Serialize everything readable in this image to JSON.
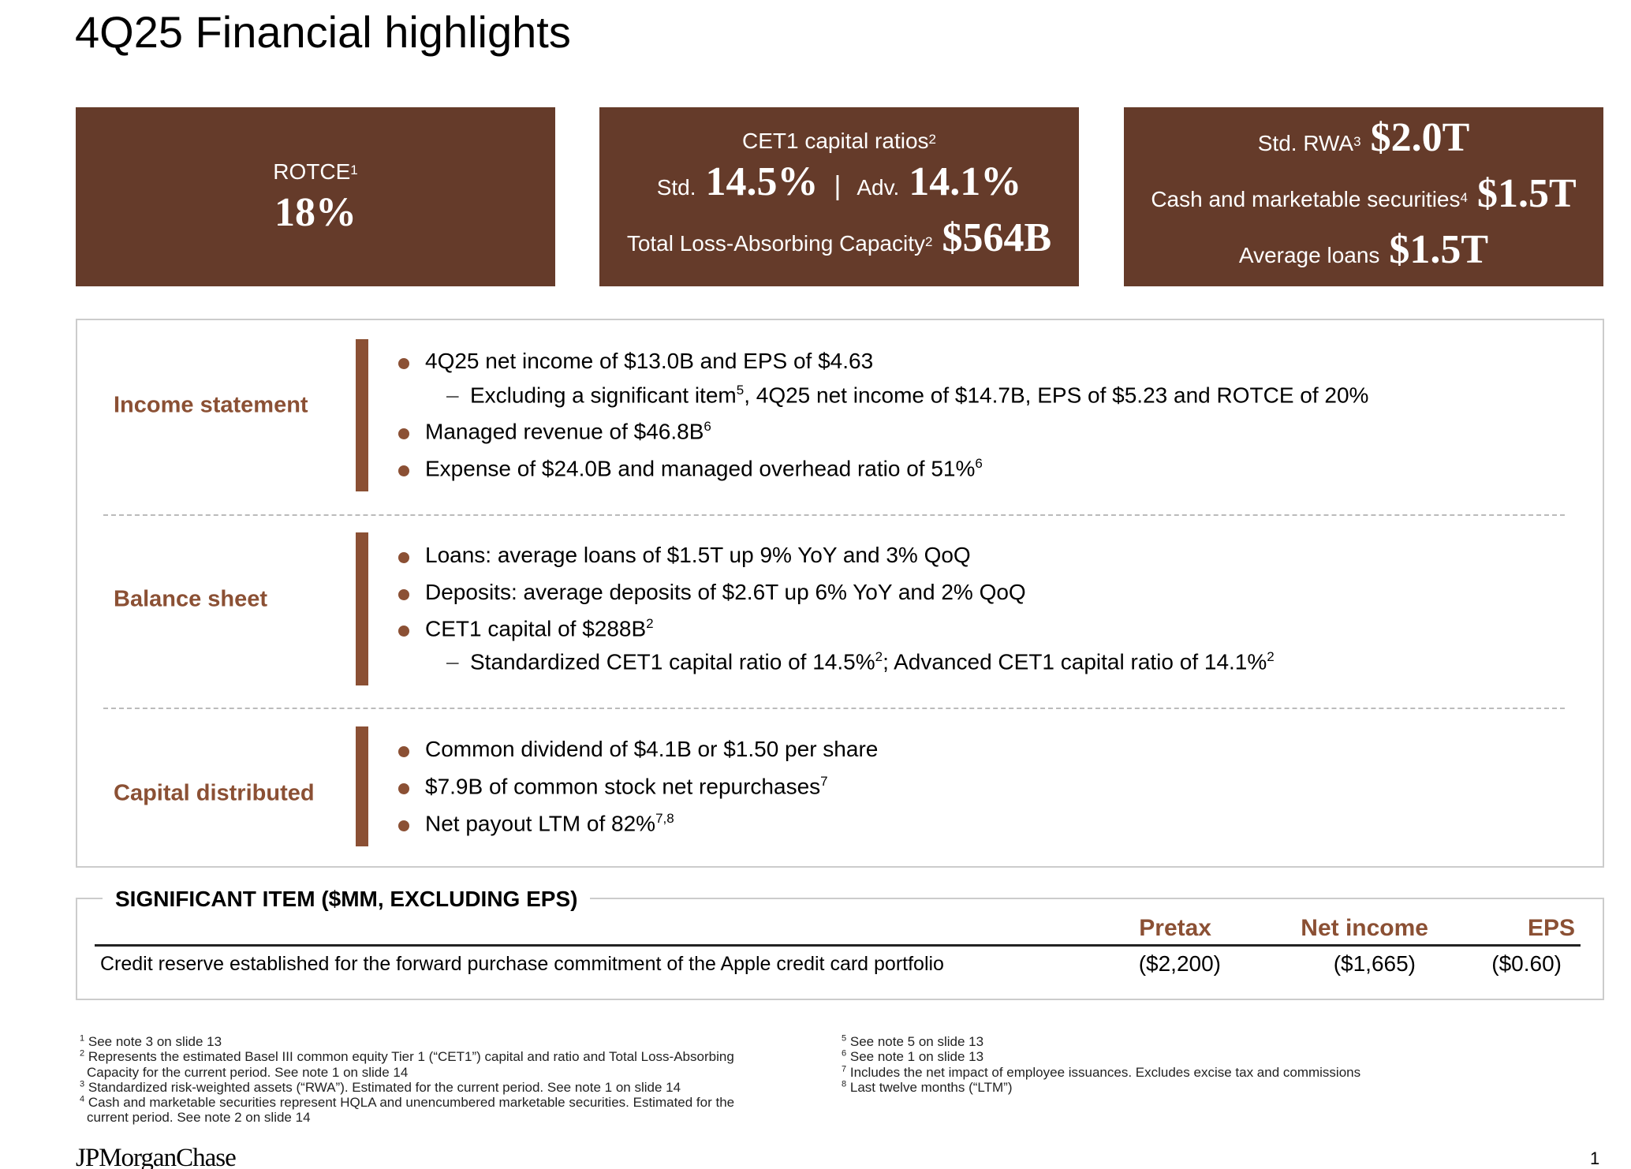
{
  "title": "4Q25 Financial highlights",
  "kpis": {
    "rotce": {
      "label": "ROTCE",
      "sup": "1",
      "value": "18%"
    },
    "cet1": {
      "label": "CET1 capital ratios",
      "sup": "2",
      "std_label": "Std.",
      "std_value": "14.5%",
      "separator": "|",
      "adv_label": "Adv.",
      "adv_value": "14.1%",
      "tlac_label": "Total Loss-Absorbing Capacity",
      "tlac_sup": "2",
      "tlac_value": "$564B"
    },
    "rwa": {
      "rwa_label": "Std. RWA",
      "rwa_sup": "3",
      "rwa_value": "$2.0T",
      "cash_label": "Cash and marketable securities",
      "cash_sup": "4",
      "cash_value": "$1.5T",
      "loans_label": "Average loans",
      "loans_value": "$1.5T"
    }
  },
  "sections": [
    {
      "label": "Income statement",
      "lines": [
        {
          "level": 1,
          "parts": [
            {
              "t": "4Q25 net income of $13.0B and EPS of $4.63"
            }
          ]
        },
        {
          "level": 2,
          "parts": [
            {
              "t": "Excluding a significant item"
            },
            {
              "sup": "5"
            },
            {
              "t": ", 4Q25 net income of $14.7B, EPS of $5.23 and ROTCE of 20%"
            }
          ]
        },
        {
          "level": 1,
          "parts": [
            {
              "t": "Managed revenue of $46.8B"
            },
            {
              "sup": "6"
            }
          ]
        },
        {
          "level": 1,
          "parts": [
            {
              "t": "Expense of $24.0B and managed overhead ratio of 51%"
            },
            {
              "sup": "6"
            }
          ]
        }
      ]
    },
    {
      "label": "Balance sheet",
      "lines": [
        {
          "level": 1,
          "parts": [
            {
              "t": "Loans: average loans of $1.5T up 9% YoY and 3% QoQ"
            }
          ]
        },
        {
          "level": 1,
          "parts": [
            {
              "t": "Deposits: average deposits of $2.6T up 6% YoY and 2% QoQ"
            }
          ]
        },
        {
          "level": 1,
          "parts": [
            {
              "t": "CET1 capital of $288B"
            },
            {
              "sup": "2"
            }
          ]
        },
        {
          "level": 2,
          "parts": [
            {
              "t": "Standardized CET1 capital ratio of 14.5%"
            },
            {
              "sup": "2"
            },
            {
              "t": "; Advanced CET1 capital ratio of 14.1%"
            },
            {
              "sup": "2"
            }
          ]
        }
      ]
    },
    {
      "label": "Capital distributed",
      "lines": [
        {
          "level": 1,
          "parts": [
            {
              "t": "Common dividend of $4.1B or $1.50 per share"
            }
          ]
        },
        {
          "level": 1,
          "parts": [
            {
              "t": "$7.9B of common stock net repurchases"
            },
            {
              "sup": "7"
            }
          ]
        },
        {
          "level": 1,
          "parts": [
            {
              "t": "Net payout LTM of 82%"
            },
            {
              "sup": "7,8"
            }
          ]
        }
      ]
    }
  ],
  "significant_item": {
    "title": "SIGNIFICANT ITEM ($MM, EXCLUDING EPS)",
    "columns": [
      "Pretax",
      "Net income",
      "EPS"
    ],
    "row": {
      "description": "Credit reserve established for the forward purchase commitment of the Apple credit card portfolio",
      "values": [
        "($2,200)",
        "($1,665)",
        "($0.60)"
      ]
    }
  },
  "footnotes_left": [
    {
      "n": "1",
      "lines": [
        "See note 3 on slide 13"
      ]
    },
    {
      "n": "2",
      "lines": [
        "Represents the estimated Basel III common equity Tier 1 (“CET1”) capital and ratio and Total Loss-Absorbing",
        "Capacity for the current period. See note 1 on slide 14"
      ]
    },
    {
      "n": "3",
      "lines": [
        "Standardized risk-weighted assets (“RWA”). Estimated for the current period. See note 1 on slide 14"
      ]
    },
    {
      "n": "4",
      "lines": [
        "Cash and marketable securities represent HQLA and unencumbered marketable securities. Estimated for the",
        "current period. See note 2 on slide 14"
      ]
    }
  ],
  "footnotes_right": [
    {
      "n": "5",
      "lines": [
        "See note 5 on slide 13"
      ]
    },
    {
      "n": "6",
      "lines": [
        "See note 1 on slide 13"
      ]
    },
    {
      "n": "7",
      "lines": [
        "Includes the net impact of employee issuances. Excludes excise tax and commissions"
      ]
    },
    {
      "n": "8",
      "lines": [
        "Last twelve months (“LTM”)"
      ]
    }
  ],
  "logo": "JPMorganChase",
  "page_number": "1",
  "colors": {
    "brand_brown": "#653B2A",
    "accent_brown": "#8B5034"
  }
}
